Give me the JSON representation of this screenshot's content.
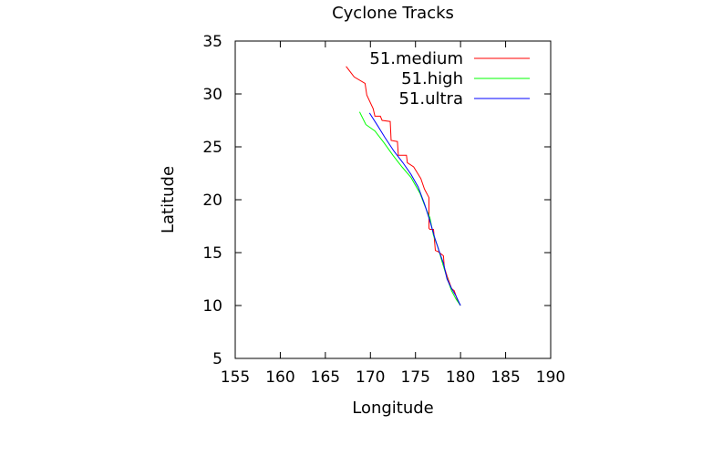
{
  "chart_data": {
    "type": "line",
    "title": "Cyclone Tracks",
    "xlabel": "Longitude",
    "ylabel": "Latitude",
    "xlim": [
      155,
      190
    ],
    "ylim": [
      5,
      35
    ],
    "xticks": [
      "155",
      "160",
      "165",
      "170",
      "175",
      "180",
      "185",
      "190"
    ],
    "yticks": [
      "5",
      "10",
      "15",
      "20",
      "25",
      "30",
      "35"
    ],
    "grid": false,
    "legend_position": "top-right",
    "series": [
      {
        "name": "51.medium",
        "color": "#ff0000",
        "x": [
          167.3,
          168.2,
          169.4,
          169.6,
          170.3,
          170.5,
          171.1,
          171.3,
          172.2,
          172.3,
          173.0,
          173.1,
          174.0,
          174.1,
          174.8,
          175.6,
          176.0,
          176.5,
          176.5,
          176.6,
          177.0,
          177.2,
          177.5,
          178.1,
          178.2,
          178.5,
          179.0,
          179.3,
          179.7,
          180.0
        ],
        "y": [
          32.6,
          31.6,
          31.0,
          29.9,
          28.6,
          27.9,
          27.9,
          27.5,
          27.4,
          25.6,
          25.5,
          24.2,
          24.2,
          23.5,
          23.1,
          22.0,
          21.0,
          20.2,
          17.3,
          17.2,
          17.2,
          15.2,
          15.1,
          14.7,
          13.6,
          12.8,
          11.6,
          11.4,
          10.4,
          10.0
        ]
      },
      {
        "name": "51.high",
        "color": "#00ff00",
        "x": [
          168.8,
          169.5,
          170.5,
          171.5,
          172.5,
          173.5,
          174.5,
          175.5,
          176.0,
          176.6,
          177.0,
          177.5,
          178.0,
          178.5,
          179.0,
          179.5,
          180.0
        ],
        "y": [
          28.3,
          27.1,
          26.5,
          25.4,
          24.2,
          23.1,
          22.1,
          20.6,
          19.5,
          18.3,
          16.6,
          15.5,
          14.0,
          12.6,
          11.4,
          10.6,
          10.0
        ]
      },
      {
        "name": "51.ultra",
        "color": "#0000ff",
        "x": [
          169.9,
          170.8,
          171.6,
          172.6,
          173.6,
          174.5,
          175.3,
          176.0,
          176.6,
          177.1,
          177.6,
          178.1,
          178.5,
          179.0,
          179.5,
          180.0
        ],
        "y": [
          28.2,
          27.0,
          25.9,
          24.6,
          23.5,
          22.4,
          21.2,
          19.6,
          18.0,
          16.5,
          15.2,
          14.0,
          12.5,
          11.6,
          10.9,
          10.0
        ]
      }
    ]
  }
}
